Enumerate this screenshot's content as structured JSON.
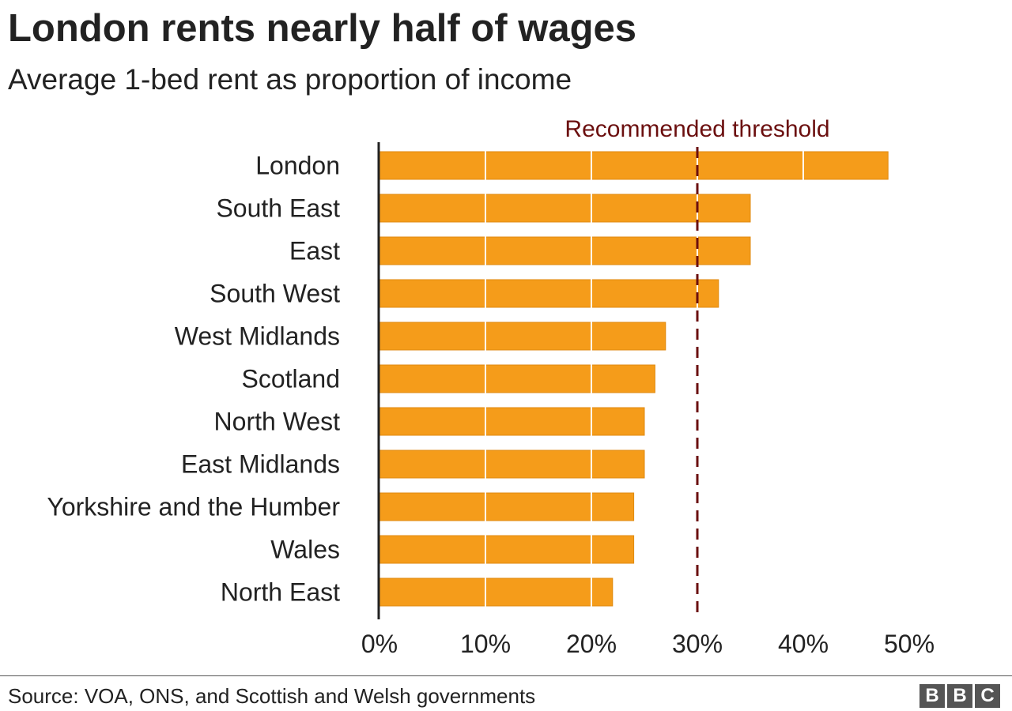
{
  "chart_data": {
    "type": "bar",
    "orientation": "horizontal",
    "title": "London rents nearly half of wages",
    "subtitle": "Average 1-bed rent as proportion of income",
    "categories": [
      "London",
      "South East",
      "East",
      "South West",
      "West Midlands",
      "Scotland",
      "North West",
      "East Midlands",
      "Yorkshire and the Humber",
      "Wales",
      "North East"
    ],
    "values": [
      48,
      35,
      35,
      32,
      27,
      26,
      25,
      25,
      24,
      24,
      22
    ],
    "xlim": [
      0,
      50
    ],
    "x_ticks": [
      0,
      10,
      20,
      30,
      40,
      50
    ],
    "x_tick_labels": [
      "0%",
      "10%",
      "20%",
      "30%",
      "40%",
      "50%"
    ],
    "reference_line": {
      "label": "Recommended threshold",
      "value": 30,
      "color": "#6b0f0f"
    },
    "bar_color": "#f59c1a",
    "grid": true
  },
  "footer": {
    "source": "Source: VOA, ONS, and Scottish and Welsh governments",
    "logo_letters": [
      "B",
      "B",
      "C"
    ]
  }
}
